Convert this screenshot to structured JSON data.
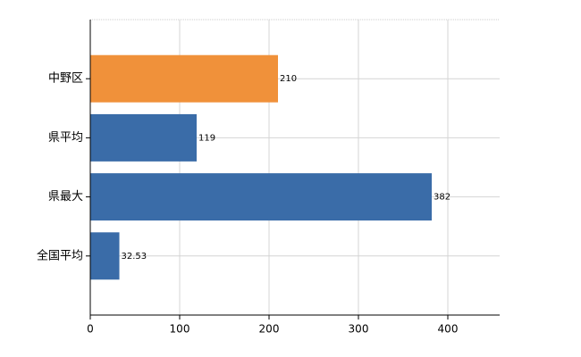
{
  "chart_data": {
    "type": "barh",
    "categories": [
      "中野区",
      "県平均",
      "県最大",
      "全国平均"
    ],
    "values": [
      210,
      119,
      382,
      32.53
    ],
    "colors": [
      "#f0913a",
      "#3a6ca8",
      "#3a6ca8",
      "#3a6ca8"
    ],
    "xlim": [
      0,
      458
    ],
    "xticks": [
      0,
      100,
      200,
      300,
      400
    ],
    "grid": true
  }
}
